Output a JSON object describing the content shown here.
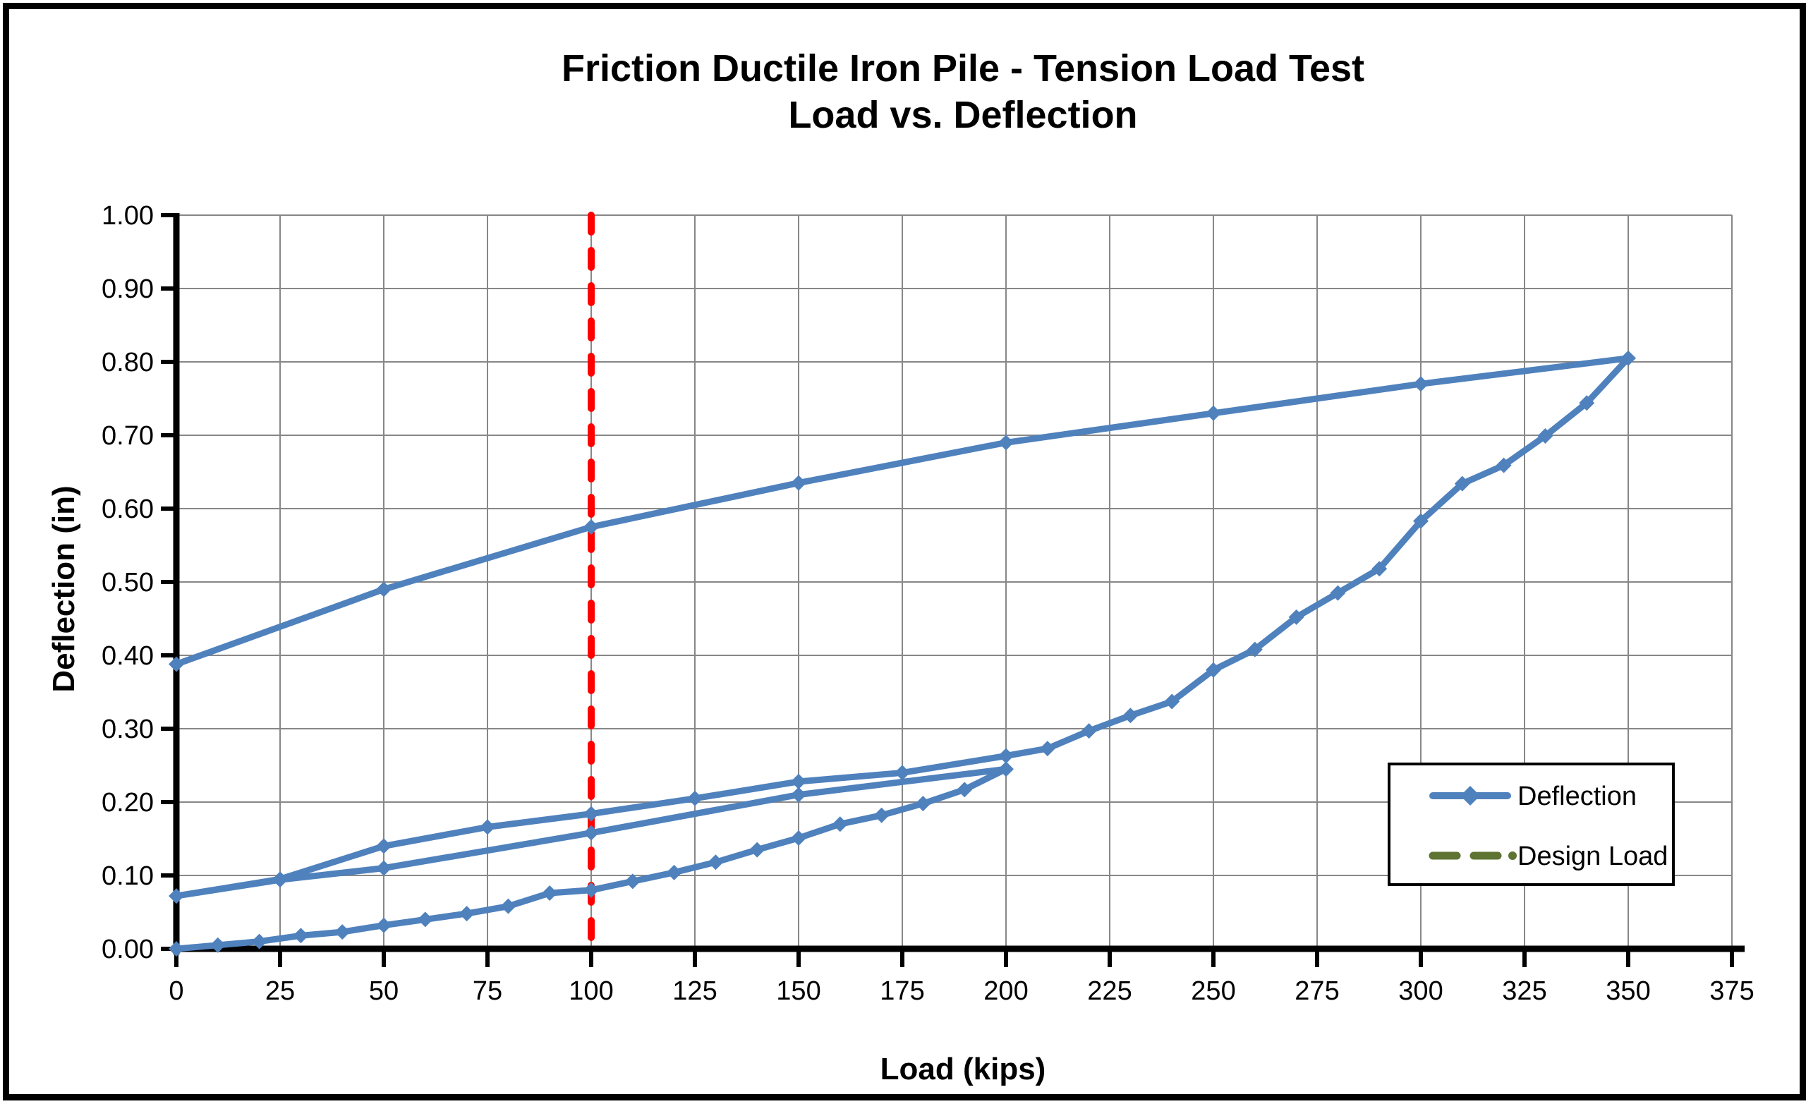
{
  "title": {
    "line1": "Friction Ductile Iron Pile - Tension Load Test",
    "line2": "Load vs. Deflection"
  },
  "chart_data": {
    "type": "line",
    "title": "Friction Ductile Iron Pile - Tension Load Test / Load vs. Deflection",
    "xlabel": "Load (kips)",
    "ylabel": "Deflection (in)",
    "xlim": [
      0,
      375
    ],
    "ylim": [
      0.0,
      1.0
    ],
    "x_ticks": [
      0,
      25,
      50,
      75,
      100,
      125,
      150,
      175,
      200,
      225,
      250,
      275,
      300,
      325,
      350,
      375
    ],
    "y_ticks": [
      0.0,
      0.1,
      0.2,
      0.3,
      0.4,
      0.5,
      0.6,
      0.7,
      0.8,
      0.9,
      1.0
    ],
    "y_tick_format_decimals": 2,
    "grid": true,
    "grid_color": "#878787",
    "axis_color": "#000000",
    "legend_position": "right-center",
    "series": [
      {
        "name": "Deflection",
        "type": "line",
        "color": "#4F81BD",
        "marker": "diamond",
        "sequence_note": "continuous test path: load 0-200, unload to 0, reload to 200, load to 350, final unload to 0",
        "points": [
          [
            0,
            0.0
          ],
          [
            10,
            0.005
          ],
          [
            20,
            0.01
          ],
          [
            30,
            0.018
          ],
          [
            40,
            0.023
          ],
          [
            50,
            0.032
          ],
          [
            60,
            0.04
          ],
          [
            70,
            0.048
          ],
          [
            80,
            0.058
          ],
          [
            90,
            0.076
          ],
          [
            100,
            0.08
          ],
          [
            110,
            0.092
          ],
          [
            120,
            0.104
          ],
          [
            130,
            0.118
          ],
          [
            140,
            0.135
          ],
          [
            150,
            0.151
          ],
          [
            160,
            0.17
          ],
          [
            170,
            0.182
          ],
          [
            180,
            0.198
          ],
          [
            190,
            0.217
          ],
          [
            200,
            0.245
          ],
          [
            150,
            0.21
          ],
          [
            100,
            0.158
          ],
          [
            50,
            0.11
          ],
          [
            25,
            0.094
          ],
          [
            0,
            0.072
          ],
          [
            25,
            0.095
          ],
          [
            50,
            0.14
          ],
          [
            75,
            0.166
          ],
          [
            100,
            0.184
          ],
          [
            125,
            0.205
          ],
          [
            150,
            0.228
          ],
          [
            175,
            0.24
          ],
          [
            200,
            0.263
          ],
          [
            210,
            0.273
          ],
          [
            220,
            0.297
          ],
          [
            230,
            0.318
          ],
          [
            240,
            0.337
          ],
          [
            250,
            0.38
          ],
          [
            260,
            0.408
          ],
          [
            270,
            0.452
          ],
          [
            280,
            0.485
          ],
          [
            290,
            0.518
          ],
          [
            300,
            0.583
          ],
          [
            310,
            0.634
          ],
          [
            320,
            0.659
          ],
          [
            330,
            0.699
          ],
          [
            340,
            0.744
          ],
          [
            350,
            0.805
          ],
          [
            300,
            0.77
          ],
          [
            250,
            0.73
          ],
          [
            200,
            0.69
          ],
          [
            150,
            0.635
          ],
          [
            100,
            0.575
          ],
          [
            50,
            0.49
          ],
          [
            0,
            0.388
          ]
        ]
      },
      {
        "name": "Design Load",
        "type": "vline",
        "x": 100,
        "line_color": "#FF0000",
        "legend_color": "#5F7332",
        "style": "dashed"
      }
    ]
  }
}
